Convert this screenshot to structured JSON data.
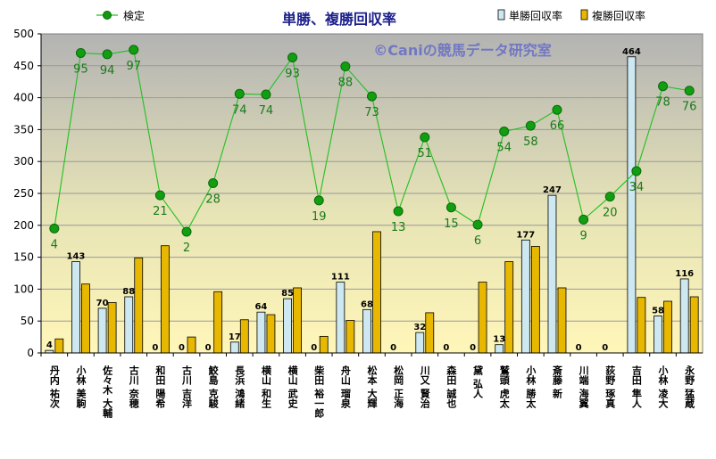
{
  "chart_data": {
    "type": "bar",
    "title": "単勝、複勝回収率",
    "watermark": "©Caniの競馬データ研究室",
    "ylim": [
      0,
      500
    ],
    "yticks": [
      0,
      50,
      100,
      150,
      200,
      250,
      300,
      350,
      400,
      450,
      500
    ],
    "categories": [
      "丹内 祐次",
      "小林 美駒",
      "佐々木 大輔",
      "古川 奈穂",
      "和田 陽希",
      "古川 吉洋",
      "鮫島 克駿",
      "長浜 鴻緒",
      "横山 和生",
      "横山 武史",
      "柴田 裕一郎",
      "舟山 瑠泉",
      "松本 大輝",
      "松岡 正海",
      "川又 賢治",
      "森田 誠也",
      "黛 弘人",
      "鷲頭 虎太",
      "小林 勝太",
      "斎藤 新",
      "川端 海翼",
      "荻野 琢真",
      "吉田 隼人",
      "小林 凌大",
      "永野 猛蔵"
    ],
    "series": [
      {
        "name": "単勝回収率",
        "kind": "bar",
        "color": "#cde8f0",
        "values": [
          4,
          143,
          70,
          88,
          0,
          0,
          0,
          17,
          64,
          85,
          0,
          111,
          68,
          0,
          32,
          0,
          0,
          13,
          177,
          247,
          0,
          0,
          464,
          58,
          116
        ]
      },
      {
        "name": "複勝回収率",
        "kind": "bar",
        "color": "#e8b800",
        "values": [
          22,
          108,
          79,
          149,
          168,
          25,
          96,
          52,
          60,
          102,
          26,
          51,
          190,
          0,
          63,
          0,
          111,
          143,
          167,
          102,
          0,
          0,
          87,
          81,
          88
        ]
      },
      {
        "name": "検定",
        "kind": "line",
        "color": "#22c022",
        "values": [
          195,
          470,
          468,
          475,
          247,
          190,
          266,
          406,
          405,
          463,
          239,
          449,
          402,
          222,
          338,
          228,
          201,
          347,
          356,
          381,
          209,
          245,
          285,
          418,
          411
        ],
        "labels": [
          4,
          95,
          94,
          97,
          21,
          2,
          28,
          74,
          74,
          93,
          19,
          88,
          73,
          13,
          51,
          15,
          6,
          54,
          58,
          66,
          9,
          20,
          34,
          78,
          76
        ]
      }
    ]
  }
}
